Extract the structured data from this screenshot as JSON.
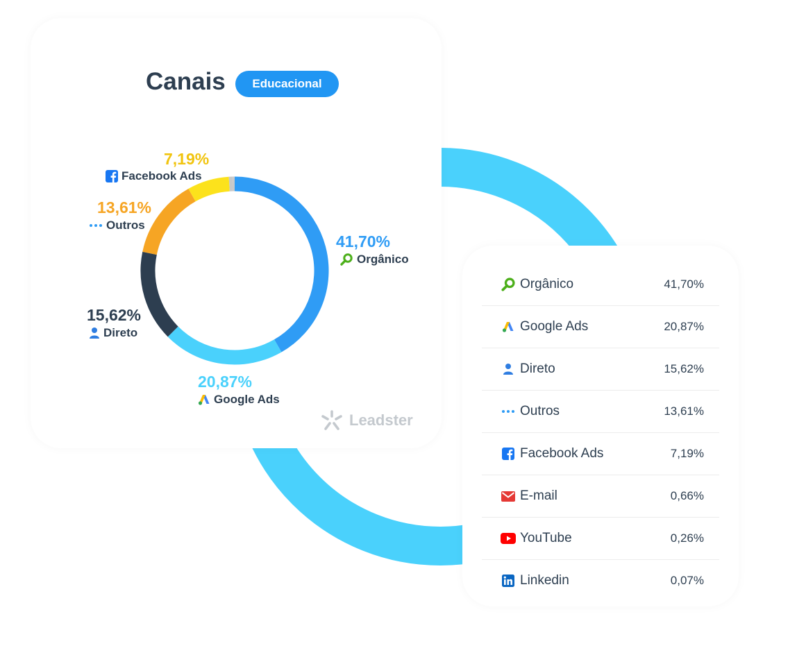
{
  "header": {
    "title": "Canais",
    "badge": "Educacional"
  },
  "colors": {
    "organico": "#2f9cf5",
    "google_ads": "#4ad1fc",
    "direto": "#2d3e50",
    "outros": "#f6a524",
    "facebook_ads": "#fce21c",
    "others_small": "#c8c8c8",
    "background_arc": "#4ad1fc",
    "badge": "#2196f3"
  },
  "chart_data": {
    "type": "pie",
    "title": "Canais",
    "subtitle": "Educacional",
    "donut": true,
    "start": "top, clockwise",
    "series": [
      {
        "name": "Orgânico",
        "value": 41.7,
        "label": "41,70%",
        "color": "#2f9cf5",
        "icon": "magnifier-icon"
      },
      {
        "name": "Google Ads",
        "value": 20.87,
        "label": "20,87%",
        "color": "#4ad1fc",
        "icon": "google-ads-icon"
      },
      {
        "name": "Direto",
        "value": 15.62,
        "label": "15,62%",
        "color": "#2d3e50",
        "icon": "user-icon"
      },
      {
        "name": "Outros",
        "value": 13.61,
        "label": "13,61%",
        "color": "#f6a524",
        "icon": "dots-icon"
      },
      {
        "name": "Facebook Ads",
        "value": 7.19,
        "label": "7,19%",
        "color": "#fce21c",
        "icon": "facebook-icon"
      },
      {
        "name": "E-mail",
        "value": 0.66,
        "label": "0,66%",
        "color": "#c8c8c8",
        "icon": "email-icon"
      },
      {
        "name": "YouTube",
        "value": 0.26,
        "label": "0,26%",
        "color": "#c8c8c8",
        "icon": "youtube-icon"
      },
      {
        "name": "Linkedin",
        "value": 0.07,
        "label": "0,07%",
        "color": "#c8c8c8",
        "icon": "linkedin-icon"
      }
    ]
  },
  "donut_labels": {
    "organico": {
      "pct": "41,70%",
      "name": "Orgânico"
    },
    "google_ads": {
      "pct": "20,87%",
      "name": "Google Ads"
    },
    "direto": {
      "pct": "15,62%",
      "name": "Direto"
    },
    "outros": {
      "pct": "13,61%",
      "name": "Outros"
    },
    "facebook_ads": {
      "pct": "7,19%",
      "name": "Facebook Ads"
    }
  },
  "table": {
    "rows": [
      {
        "name": "Orgânico",
        "value": "41,70%",
        "icon": "magnifier-icon"
      },
      {
        "name": "Google Ads",
        "value": "20,87%",
        "icon": "google-ads-icon"
      },
      {
        "name": "Direto",
        "value": "15,62%",
        "icon": "user-icon"
      },
      {
        "name": "Outros",
        "value": "13,61%",
        "icon": "dots-icon"
      },
      {
        "name": "Facebook Ads",
        "value": "7,19%",
        "icon": "facebook-icon"
      },
      {
        "name": "E-mail",
        "value": "0,66%",
        "icon": "email-icon"
      },
      {
        "name": "YouTube",
        "value": "0,26%",
        "icon": "youtube-icon"
      },
      {
        "name": "Linkedin",
        "value": "0,07%",
        "icon": "linkedin-icon"
      }
    ]
  },
  "watermark": {
    "text": "Leadster",
    "icon": "leadster-logo-icon"
  }
}
